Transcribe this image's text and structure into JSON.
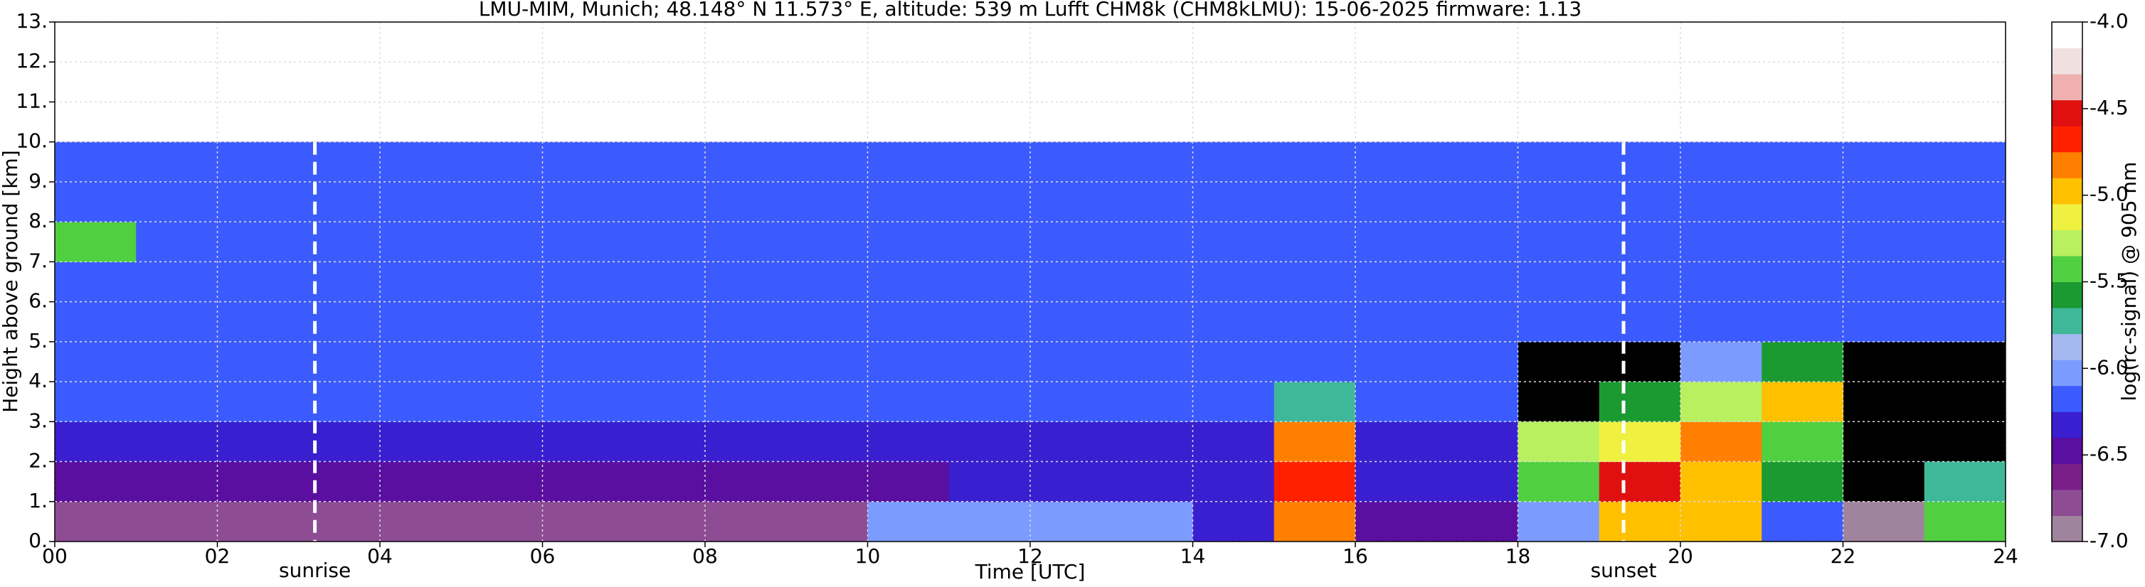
{
  "chart_data": {
    "type": "heatmap",
    "title": "LMU-MIM, Munich; 48.148° N 11.573° E, altitude: 539 m    Lufft CHM8k (CHM8kLMU): 15-06-2025    firmware: 1.13",
    "xlabel": "Time [UTC]",
    "ylabel": "Height above ground [km]",
    "colorbar_label": "log(rc-signal) @ 905 nm",
    "xlim": [
      0,
      24
    ],
    "ylim": [
      0,
      13
    ],
    "xticks": [
      {
        "value": 0,
        "label": "00"
      },
      {
        "value": 2,
        "label": "02"
      },
      {
        "value": 4,
        "label": "04"
      },
      {
        "value": 6,
        "label": "06"
      },
      {
        "value": 8,
        "label": "08"
      },
      10,
      12,
      14,
      16,
      18,
      20,
      22,
      24
    ],
    "yticks": [
      {
        "value": 0,
        "label": "0."
      },
      {
        "value": 1,
        "label": "1."
      },
      {
        "value": 2,
        "label": "2."
      },
      {
        "value": 3,
        "label": "3."
      },
      {
        "value": 4,
        "label": "4."
      },
      {
        "value": 5,
        "label": "5."
      },
      {
        "value": 6,
        "label": "6."
      },
      {
        "value": 7,
        "label": "7."
      },
      {
        "value": 8,
        "label": "8."
      },
      {
        "value": 9,
        "label": "9."
      },
      {
        "value": 10,
        "label": "10."
      },
      {
        "value": 11,
        "label": "11."
      },
      {
        "value": 12,
        "label": "12."
      },
      {
        "value": 13,
        "label": "13."
      }
    ],
    "grid": true,
    "clim": [
      -7,
      -4
    ],
    "cticks": [
      {
        "value": -4,
        "label": "-4.0"
      },
      {
        "value": -4.5,
        "label": "-4.5"
      },
      {
        "value": -5,
        "label": "-5.0"
      },
      {
        "value": -5.5,
        "label": "-5.5"
      },
      {
        "value": -6,
        "label": "-6.0"
      },
      {
        "value": -6.5,
        "label": "-6.5"
      },
      {
        "value": -7,
        "label": "-7.0"
      }
    ],
    "colormap": [
      "#a0849e",
      "#8e4c95",
      "#7a1f8a",
      "#5a0fa0",
      "#3a1fd0",
      "#3b5bff",
      "#7b9bff",
      "#a5b8f0",
      "#3fb89a",
      "#1a9a30",
      "#50d040",
      "#b8f060",
      "#f0f040",
      "#ffc000",
      "#ff8000",
      "#ff2000",
      "#e01010",
      "#f0b0b0",
      "#f0e0e0",
      "#ffffff"
    ],
    "annotations": [
      {
        "text": "sunrise",
        "x": 3.2
      },
      {
        "text": "sunset",
        "x": 19.3
      }
    ],
    "x_edges": [
      0,
      1,
      2,
      3,
      4,
      5,
      6,
      7,
      8,
      9,
      10,
      11,
      12,
      13,
      14,
      15,
      16,
      17,
      18,
      19,
      20,
      21,
      22,
      23,
      24
    ],
    "y_edges": [
      0,
      1,
      2,
      3,
      4,
      5,
      6,
      7,
      8,
      9,
      10
    ],
    "values": [
      [
        -6.7,
        -6.7,
        -6.7,
        -6.7,
        -6.7,
        -6.7,
        -6.7,
        -6.7,
        -6.7,
        -6.7,
        -6.1,
        -6.1,
        -6.1,
        -6.1,
        -6.3,
        -4.8,
        -6.4,
        -6.4,
        -6.0,
        -5.0,
        -4.9,
        -6.2,
        -6.9,
        -5.5
      ],
      [
        -6.5,
        -6.5,
        -6.4,
        -6.4,
        -6.4,
        -6.4,
        -6.4,
        -6.4,
        -6.4,
        -6.4,
        -6.4,
        -6.3,
        -6.3,
        -6.3,
        -6.3,
        -4.7,
        -6.3,
        -6.3,
        -5.4,
        -4.5,
        -5.0,
        -5.6,
        null,
        -5.8
      ],
      [
        -6.3,
        -6.3,
        -6.3,
        -6.3,
        -6.3,
        -6.3,
        -6.3,
        -6.3,
        -6.3,
        -6.3,
        -6.3,
        -6.3,
        -6.3,
        -6.3,
        -6.3,
        -4.8,
        -6.3,
        -6.3,
        -5.3,
        -5.2,
        -4.8,
        -5.5,
        null,
        null
      ],
      [
        -6.2,
        -6.2,
        -6.2,
        -6.2,
        -6.2,
        -6.2,
        -6.2,
        -6.2,
        -6.2,
        -6.2,
        -6.2,
        -6.2,
        -6.2,
        -6.2,
        -6.2,
        -5.8,
        -6.2,
        -6.2,
        null,
        -5.6,
        -5.3,
        -5.0,
        null,
        null
      ],
      [
        -6.2,
        -6.2,
        -6.2,
        -6.2,
        -6.2,
        -6.2,
        -6.2,
        -6.2,
        -6.2,
        -6.2,
        -6.2,
        -6.2,
        -6.2,
        -6.2,
        -6.2,
        -6.2,
        -6.2,
        -6.2,
        null,
        null,
        -6.0,
        -5.6,
        null,
        null
      ],
      [
        -6.2,
        -6.2,
        -6.2,
        -6.2,
        -6.2,
        -6.2,
        -6.2,
        -6.2,
        -6.2,
        -6.2,
        -6.2,
        -6.2,
        -6.2,
        -6.2,
        -6.2,
        -6.2,
        -6.2,
        -6.2,
        -6.2,
        -6.2,
        -6.2,
        -6.2,
        -6.2,
        -6.2
      ],
      [
        -6.2,
        -6.2,
        -6.2,
        -6.2,
        -6.2,
        -6.2,
        -6.2,
        -6.2,
        -6.2,
        -6.2,
        -6.2,
        -6.2,
        -6.2,
        -6.2,
        -6.2,
        -6.2,
        -6.2,
        -6.2,
        -6.2,
        -6.2,
        -6.2,
        -6.2,
        -6.2,
        -6.2
      ],
      [
        -5.4,
        -6.2,
        -6.2,
        -6.2,
        -6.2,
        -6.2,
        -6.2,
        -6.2,
        -6.2,
        -6.2,
        -6.2,
        -6.2,
        -6.2,
        -6.2,
        -6.2,
        -6.2,
        -6.2,
        -6.2,
        -6.2,
        -6.2,
        -6.2,
        -6.2,
        -6.2,
        -6.2
      ],
      [
        -6.2,
        -6.2,
        -6.2,
        -6.2,
        -6.2,
        -6.2,
        -6.2,
        -6.2,
        -6.2,
        -6.2,
        -6.2,
        -6.2,
        -6.2,
        -6.2,
        -6.2,
        -6.2,
        -6.2,
        -6.2,
        -6.2,
        -6.2,
        -6.2,
        -6.2,
        -6.2,
        -6.2
      ],
      [
        -6.2,
        -6.2,
        -6.2,
        -6.2,
        -6.2,
        -6.2,
        -6.2,
        -6.2,
        -6.2,
        -6.2,
        -6.2,
        -6.2,
        -6.2,
        -6.2,
        -6.2,
        -6.2,
        -6.2,
        -6.2,
        -6.2,
        -6.2,
        -6.2,
        -6.2,
        -6.2,
        -6.2
      ]
    ]
  }
}
